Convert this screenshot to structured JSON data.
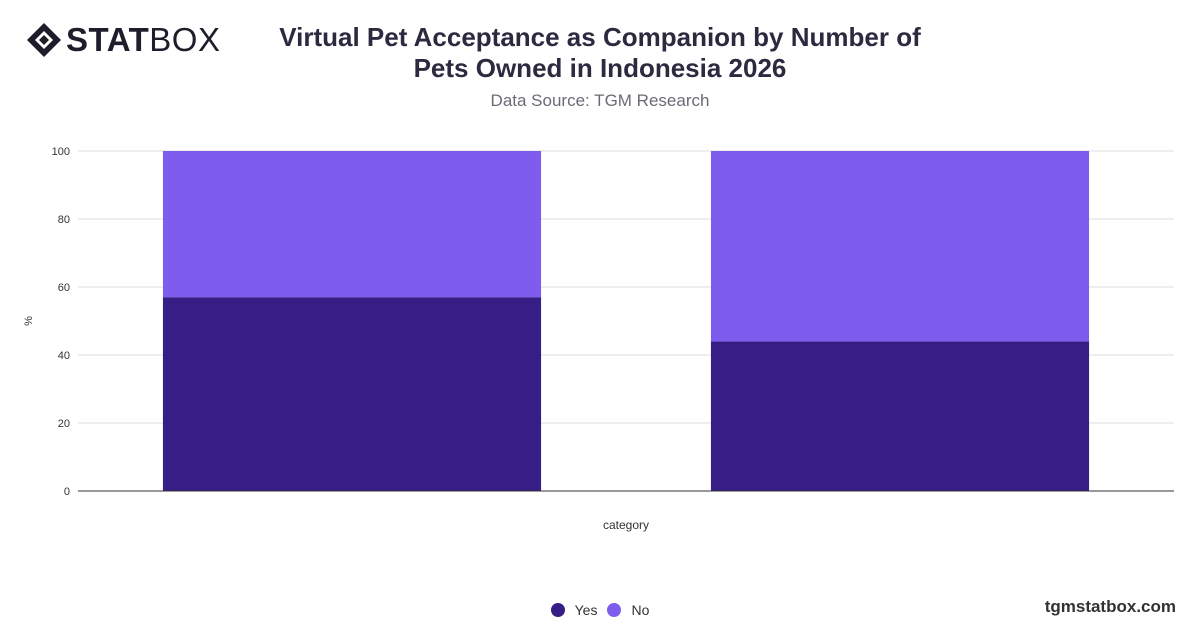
{
  "brand": {
    "logo_bold": "STAT",
    "logo_light": "BOX",
    "footer_url": "tgmstatbox.com"
  },
  "header": {
    "title_line1": "Virtual Pet Acceptance as Companion by Number of",
    "title_line2": "Pets Owned in Indonesia 2026",
    "subtitle": "Data Source: TGM Research"
  },
  "chart_data": {
    "type": "bar",
    "stacked": true,
    "categories": [
      "",
      ""
    ],
    "series": [
      {
        "name": "Yes",
        "values": [
          57,
          44
        ],
        "color": "#371e86"
      },
      {
        "name": "No",
        "values": [
          43,
          56
        ],
        "color": "#7d5cee"
      }
    ],
    "xlabel": "category",
    "ylabel": "%",
    "ylim": [
      0,
      100
    ],
    "yticks": [
      0,
      20,
      40,
      60,
      80,
      100
    ],
    "grid": true,
    "legend_position": "bottom-center"
  }
}
